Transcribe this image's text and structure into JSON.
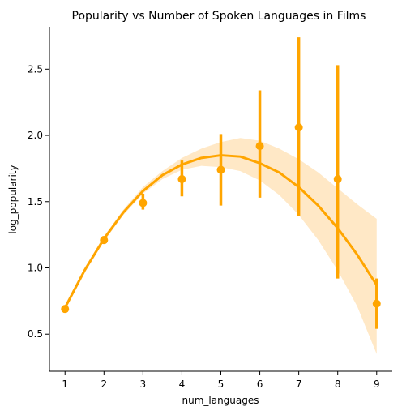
{
  "chart_data": {
    "type": "scatter",
    "title": "Popularity vs Number of Spoken Languages in Films",
    "xlabel": "num_languages",
    "ylabel": "log_popularity",
    "xlim": [
      0.6,
      9.4
    ],
    "ylim": [
      0.22,
      2.82
    ],
    "xticks": [
      1,
      2,
      3,
      4,
      5,
      6,
      7,
      8,
      9
    ],
    "yticks": [
      0.5,
      1.0,
      1.5,
      2.0,
      2.5
    ],
    "ytick_labels": [
      "0.5",
      "1.0",
      "1.5",
      "2.0",
      "2.5"
    ],
    "grid": false,
    "color": "#FFA500",
    "band_color": "#FFE8C6",
    "points": [
      {
        "x": 1,
        "y": 0.69,
        "ci": [
          0.69,
          0.69
        ]
      },
      {
        "x": 2,
        "y": 1.21,
        "ci": [
          1.19,
          1.24
        ]
      },
      {
        "x": 3,
        "y": 1.49,
        "ci": [
          1.44,
          1.56
        ]
      },
      {
        "x": 4,
        "y": 1.67,
        "ci": [
          1.54,
          1.81
        ]
      },
      {
        "x": 5,
        "y": 1.74,
        "ci": [
          1.47,
          2.01
        ]
      },
      {
        "x": 6,
        "y": 1.92,
        "ci": [
          1.53,
          2.34
        ]
      },
      {
        "x": 7,
        "y": 2.06,
        "ci": [
          1.39,
          2.74
        ]
      },
      {
        "x": 8,
        "y": 1.67,
        "ci": [
          0.92,
          2.53
        ]
      },
      {
        "x": 9,
        "y": 0.73,
        "ci": [
          0.54,
          0.92
        ]
      }
    ],
    "fit": {
      "type": "quadratic",
      "x": [
        1,
        1.5,
        2,
        2.5,
        3,
        3.5,
        4,
        4.5,
        5,
        5.5,
        6,
        6.5,
        7,
        7.5,
        8,
        8.5,
        9
      ],
      "y": [
        0.7,
        0.98,
        1.22,
        1.42,
        1.58,
        1.7,
        1.78,
        1.83,
        1.85,
        1.84,
        1.79,
        1.72,
        1.61,
        1.47,
        1.3,
        1.1,
        0.87
      ],
      "lower": [
        0.68,
        0.96,
        1.2,
        1.4,
        1.56,
        1.67,
        1.74,
        1.77,
        1.76,
        1.73,
        1.66,
        1.55,
        1.4,
        1.21,
        0.98,
        0.71,
        0.35
      ],
      "upper": [
        0.72,
        1.0,
        1.24,
        1.44,
        1.61,
        1.73,
        1.83,
        1.9,
        1.95,
        1.98,
        1.96,
        1.9,
        1.82,
        1.72,
        1.6,
        1.48,
        1.37
      ]
    }
  }
}
